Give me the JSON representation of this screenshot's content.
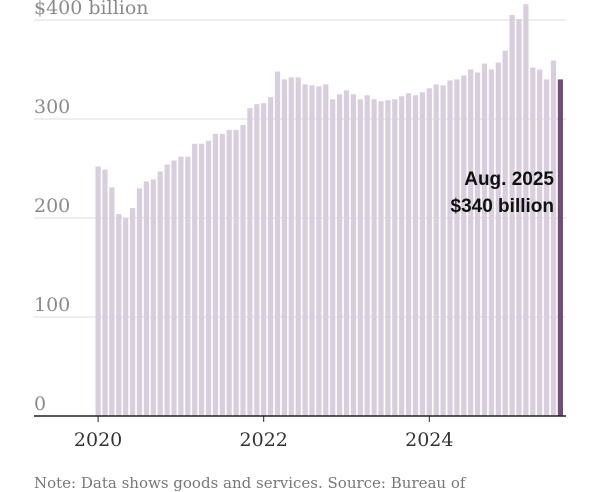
{
  "chart_data": {
    "type": "bar",
    "x_start": "2020-01",
    "x_unit": "month",
    "values": [
      252,
      249,
      231,
      204,
      200,
      210,
      230,
      237,
      239,
      247,
      254,
      258,
      262,
      262,
      275,
      275,
      278,
      285,
      285,
      289,
      289,
      294,
      311,
      315,
      316,
      322,
      348,
      340,
      342,
      342,
      335,
      334,
      333,
      335,
      320,
      325,
      329,
      325,
      320,
      324,
      320,
      318,
      319,
      320,
      323,
      326,
      324,
      327,
      331,
      335,
      334,
      339,
      340,
      344,
      350,
      347,
      356,
      350,
      357,
      369,
      405,
      401,
      416,
      352,
      350,
      340,
      359,
      340
    ],
    "highlight_index": 67,
    "ylim": [
      0,
      420
    ],
    "y_ticks": [
      {
        "value": 0,
        "label": "0"
      },
      {
        "value": 100,
        "label": "100"
      },
      {
        "value": 200,
        "label": "200"
      },
      {
        "value": 300,
        "label": "300"
      },
      {
        "value": 400,
        "label": "$400 billion"
      }
    ],
    "x_ticks": [
      {
        "index": 0,
        "label": "2020"
      },
      {
        "index": 24,
        "label": "2022"
      },
      {
        "index": 48,
        "label": "2024"
      }
    ],
    "grid": true,
    "bar_color": "#d9cedd",
    "highlight_color": "#6f4f73",
    "annotation": {
      "line1": "Aug. 2025",
      "line2": "$340 billion"
    }
  },
  "note": "Note: Data shows goods and services. Source: Bureau of"
}
